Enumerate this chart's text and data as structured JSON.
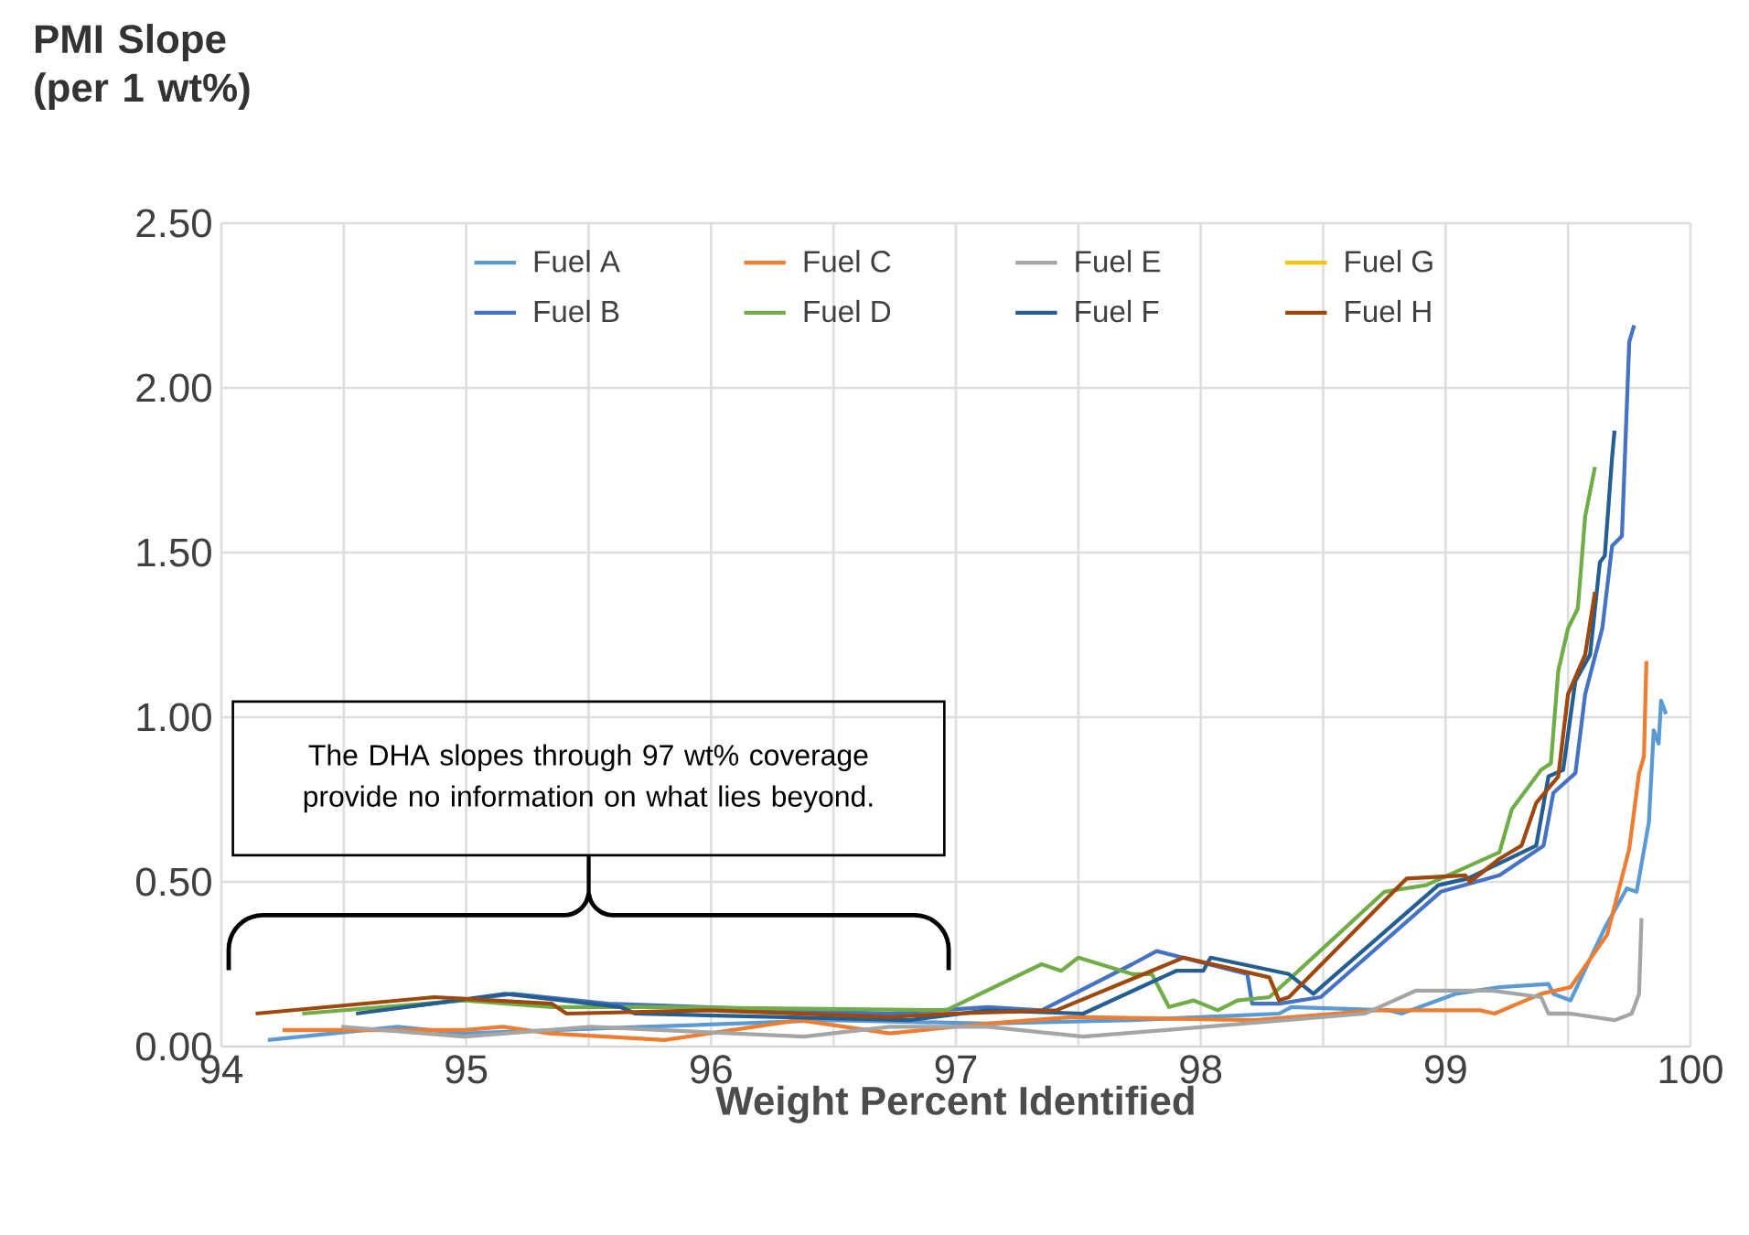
{
  "chart_data": {
    "type": "line",
    "ylabel": "PMI Slope (per 1 wt%)",
    "xlabel": "Weight Percent Identified",
    "annotations": [
      "The DHA slopes through 97 wt% coverage provide no information on what lies beyond."
    ],
    "xlim": [
      94,
      100
    ],
    "xticks": [
      94,
      {
        "value": 94.5,
        "label": null
      },
      95,
      {
        "value": 95.5,
        "label": null
      },
      96,
      {
        "value": 96.5,
        "label": null
      },
      97,
      {
        "value": 97.5,
        "label": null
      },
      98,
      {
        "value": 98.5,
        "label": null
      },
      99,
      {
        "value": 99.5,
        "label": null
      },
      100
    ],
    "ylim": [
      0,
      2.5
    ],
    "yticks": [
      {
        "value": 0,
        "label": "0.00"
      },
      {
        "value": 0.5,
        "label": "0.50"
      },
      {
        "value": 1,
        "label": "1.00"
      },
      {
        "value": 1.5,
        "label": "1.50"
      },
      {
        "value": 2,
        "label": "2.00"
      },
      {
        "value": 2.5,
        "label": "2.50"
      }
    ],
    "grid": true,
    "legend": "top",
    "marker": "none",
    "line_style": "solid",
    "series": [
      {
        "name": "Fuel A",
        "color": "#5b9bd5",
        "x": [
          94.19,
          94.72,
          94.99,
          95.73,
          96.48,
          97.13,
          97.72,
          98.32,
          98.37,
          98.77,
          98.82,
          99.04,
          99.22,
          99.42,
          99.44,
          99.51,
          99.65,
          99.74,
          99.78,
          99.83,
          99.85,
          99.87,
          99.88,
          99.9
        ],
        "values": [
          0.02,
          0.06,
          0.04,
          0.06,
          0.08,
          0.07,
          0.08,
          0.1,
          0.12,
          0.11,
          0.1,
          0.16,
          0.18,
          0.19,
          0.16,
          0.14,
          0.36,
          0.48,
          0.47,
          0.68,
          0.96,
          0.92,
          1.05,
          1.01
        ]
      },
      {
        "name": "Fuel C",
        "color": "#ed7d31",
        "x": [
          94.25,
          94.72,
          94.99,
          95.15,
          95.34,
          95.81,
          96.36,
          96.73,
          97.13,
          97.48,
          98.22,
          98.72,
          99.14,
          99.2,
          99.39,
          99.51,
          99.66,
          99.75,
          99.79,
          99.81,
          99.82
        ],
        "values": [
          0.05,
          0.05,
          0.05,
          0.06,
          0.04,
          0.02,
          0.08,
          0.04,
          0.07,
          0.09,
          0.08,
          0.11,
          0.11,
          0.1,
          0.16,
          0.18,
          0.34,
          0.6,
          0.83,
          0.88,
          1.17
        ]
      },
      {
        "name": "Fuel E",
        "color": "#a5a5a5",
        "x": [
          94.49,
          94.99,
          95.51,
          96.38,
          96.73,
          97.13,
          97.52,
          98.02,
          98.67,
          98.88,
          99.19,
          99.39,
          99.42,
          99.51,
          99.69,
          99.76,
          99.79,
          99.8
        ],
        "values": [
          0.06,
          0.03,
          0.06,
          0.03,
          0.06,
          0.06,
          0.03,
          0.06,
          0.1,
          0.17,
          0.17,
          0.15,
          0.1,
          0.1,
          0.08,
          0.1,
          0.16,
          0.39
        ]
      },
      {
        "name": "Fuel G",
        "color": "#ffc000"
      },
      {
        "name": "Fuel B",
        "color": "#4472c4",
        "x": [
          94.64,
          95.19,
          95.58,
          96.73,
          97.13,
          97.35,
          97.72,
          97.82,
          98.19,
          98.21,
          98.32,
          98.49,
          98.98,
          99.22,
          99.4,
          99.44,
          99.53,
          99.57,
          99.64,
          99.68,
          99.72,
          99.75,
          99.77
        ],
        "values": [
          0.11,
          0.16,
          0.13,
          0.1,
          0.12,
          0.11,
          0.25,
          0.29,
          0.22,
          0.13,
          0.13,
          0.15,
          0.47,
          0.52,
          0.61,
          0.77,
          0.83,
          1.07,
          1.27,
          1.52,
          1.55,
          2.14,
          2.19
        ]
      },
      {
        "name": "Fuel D",
        "color": "#70ad47",
        "x": [
          94.33,
          94.99,
          95.35,
          95.73,
          96.96,
          97.35,
          97.43,
          97.5,
          97.72,
          97.8,
          97.87,
          97.97,
          98.07,
          98.15,
          98.28,
          98.37,
          98.75,
          98.92,
          99.22,
          99.27,
          99.39,
          99.43,
          99.46,
          99.5,
          99.54,
          99.57,
          99.61
        ],
        "values": [
          0.1,
          0.14,
          0.12,
          0.12,
          0.11,
          0.25,
          0.23,
          0.27,
          0.22,
          0.22,
          0.12,
          0.14,
          0.11,
          0.14,
          0.15,
          0.21,
          0.47,
          0.49,
          0.59,
          0.72,
          0.84,
          0.86,
          1.14,
          1.27,
          1.33,
          1.61,
          1.76
        ]
      },
      {
        "name": "Fuel F",
        "color": "#255e91",
        "x": [
          94.55,
          95.16,
          95.63,
          95.69,
          96.81,
          97.13,
          97.52,
          97.9,
          98.01,
          98.04,
          98.36,
          98.46,
          98.97,
          99.09,
          99.37,
          99.42,
          99.48,
          99.53,
          99.59,
          99.63,
          99.65,
          99.68,
          99.69
        ],
        "values": [
          0.1,
          0.16,
          0.12,
          0.1,
          0.08,
          0.11,
          0.1,
          0.23,
          0.23,
          0.27,
          0.22,
          0.16,
          0.49,
          0.51,
          0.61,
          0.82,
          0.84,
          1.11,
          1.19,
          1.47,
          1.49,
          1.79,
          1.87
        ]
      },
      {
        "name": "Fuel H",
        "color": "#9e480e",
        "x": [
          94.14,
          94.87,
          95.35,
          95.41,
          95.99,
          96.73,
          96.98,
          97.41,
          97.93,
          98.28,
          98.32,
          98.36,
          98.84,
          99.08,
          99.1,
          99.22,
          99.31,
          99.37,
          99.46,
          99.5,
          99.57,
          99.61
        ],
        "values": [
          0.1,
          0.15,
          0.13,
          0.1,
          0.11,
          0.09,
          0.1,
          0.11,
          0.27,
          0.21,
          0.14,
          0.15,
          0.51,
          0.52,
          0.5,
          0.57,
          0.61,
          0.74,
          0.82,
          1.07,
          1.19,
          1.38
        ]
      }
    ]
  }
}
